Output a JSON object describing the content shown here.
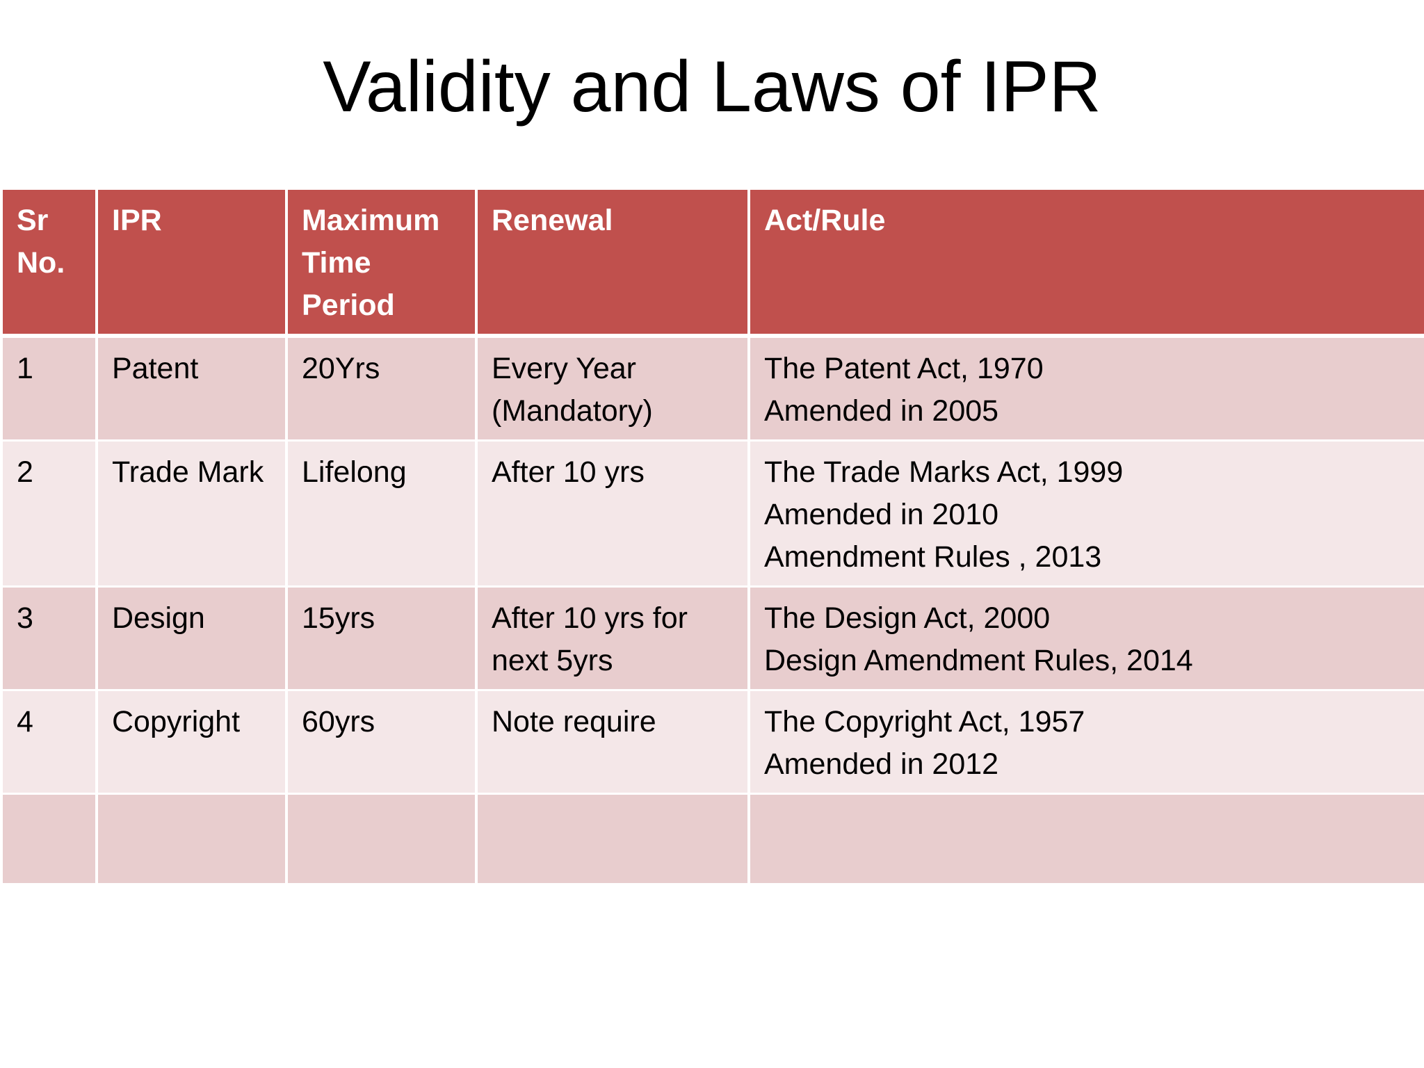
{
  "slide": {
    "title": "Validity and Laws of IPR"
  },
  "table": {
    "headers": {
      "sr_no": "Sr No.",
      "ipr": "IPR",
      "max_time": "Maximum Time Period",
      "renewal": "Renewal",
      "act_rule": "Act/Rule"
    },
    "rows": [
      {
        "sr": "1",
        "ipr": "Patent",
        "period": "20Yrs",
        "renewal": "Every Year (Mandatory)",
        "act_lines": [
          "The Patent Act, 1970",
          "Amended in 2005"
        ]
      },
      {
        "sr": "2",
        "ipr": "Trade Mark",
        "period": "Lifelong",
        "renewal": "After 10 yrs",
        "act_lines": [
          "The Trade Marks Act, 1999",
          "Amended in 2010",
          "Amendment Rules , 2013"
        ]
      },
      {
        "sr": "3",
        "ipr": "Design",
        "period": "15yrs",
        "renewal": "After 10 yrs for next 5yrs",
        "act_lines": [
          "The Design Act, 2000",
          "Design Amendment Rules, 2014"
        ]
      },
      {
        "sr": "4",
        "ipr": "Copyright",
        "period": "60yrs",
        "renewal": "Note require",
        "act_lines": [
          "The Copyright Act, 1957",
          "Amended in 2012"
        ]
      }
    ]
  },
  "colors": {
    "header_bg": "#c0504d",
    "row_odd_bg": "#e8cdce",
    "row_even_bg": "#f4e7e8"
  }
}
